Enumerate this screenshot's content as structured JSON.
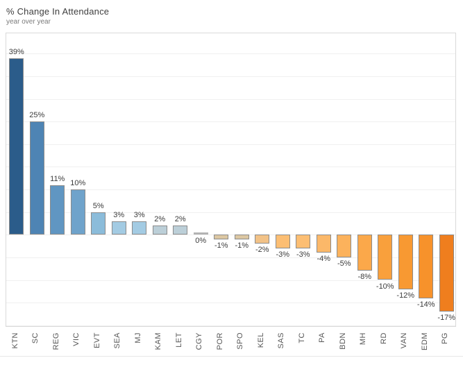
{
  "header": {
    "title": "% Change In Attendance",
    "subtitle": "year over year"
  },
  "chart_data": {
    "type": "bar",
    "title": "% Change In Attendance",
    "subtitle": "year over year",
    "xlabel": "",
    "ylabel": "",
    "categories": [
      "KTN",
      "SC",
      "REG",
      "VIC",
      "EVT",
      "SEA",
      "MJ",
      "KAM",
      "LET",
      "CGY",
      "POR",
      "SPO",
      "KEL",
      "SAS",
      "TC",
      "PA",
      "BDN",
      "MH",
      "RD",
      "VAN",
      "EDM",
      "PG"
    ],
    "values": [
      39,
      25,
      11,
      10,
      5,
      3,
      3,
      2,
      2,
      0,
      -1,
      -1,
      -2,
      -3,
      -3,
      -4,
      -5,
      -8,
      -10,
      -12,
      -14,
      -17
    ],
    "value_labels": [
      "39%",
      "25%",
      "11%",
      "10%",
      "5%",
      "3%",
      "3%",
      "2%",
      "2%",
      "0%",
      "-1%",
      "-1%",
      "-2%",
      "-3%",
      "-3%",
      "-4%",
      "-5%",
      "-8%",
      "-10%",
      "-12%",
      "-14%",
      "-17%"
    ],
    "bar_colors": [
      "#2b5c8a",
      "#4e84b4",
      "#6096c2",
      "#6fa3cb",
      "#8bbcda",
      "#a3cbe3",
      "#a3cbe3",
      "#bccfd8",
      "#bccfd8",
      "#b3b3b3",
      "#dcc7a2",
      "#dcc7a2",
      "#f2c287",
      "#fcbe73",
      "#fcbe73",
      "#fbb869",
      "#fcb25c",
      "#fba84a",
      "#f9a03c",
      "#f89932",
      "#f7922b",
      "#ef7e1e"
    ],
    "ylim": [
      -20.5,
      44.5
    ],
    "gridline_step": 5,
    "grid": true,
    "legend": false
  },
  "colors": {
    "grid": "#f0f0f0",
    "plot_border": "#d9d9d9",
    "bar_border": "#8b8b8b",
    "zero_bar_fill": "#b9b9b9",
    "value_label_text": "#3b3b3b",
    "tick_label_text": "#575757"
  }
}
